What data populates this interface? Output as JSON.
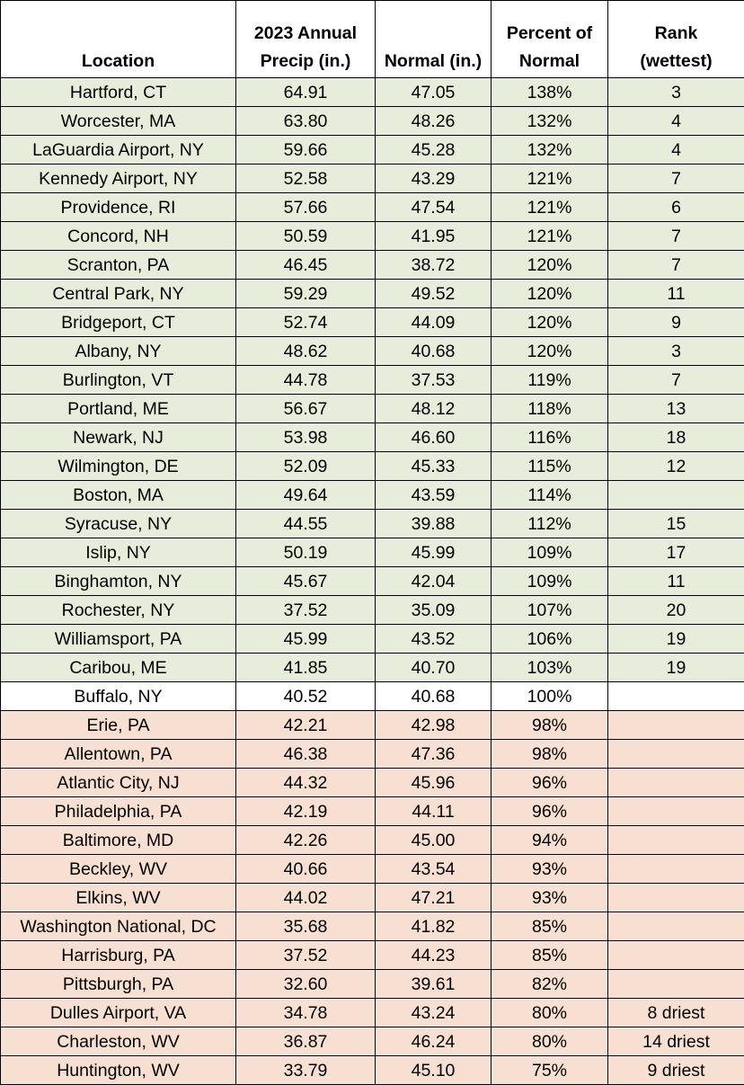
{
  "chart_data": {
    "type": "table",
    "columns": [
      "Location",
      "2023 Annual Precip (in.)",
      "Normal (in.)",
      "Percent of Normal",
      "Rank (wettest)"
    ],
    "header_lines": [
      [
        "Location"
      ],
      [
        "2023 Annual",
        "Precip (in.)"
      ],
      [
        "Normal (in.)"
      ],
      [
        "Percent of",
        "Normal"
      ],
      [
        "Rank",
        "(wettest)"
      ]
    ],
    "colors": {
      "above_normal": "#e6eedb",
      "normal": "#ffffff",
      "below_normal": "#f7e0d1"
    },
    "rows": [
      {
        "location": "Hartford, CT",
        "precip": "64.91",
        "normal": "47.05",
        "percent": "138%",
        "rank": "3",
        "group": "wet"
      },
      {
        "location": "Worcester, MA",
        "precip": "63.80",
        "normal": "48.26",
        "percent": "132%",
        "rank": "4",
        "group": "wet"
      },
      {
        "location": "LaGuardia Airport, NY",
        "precip": "59.66",
        "normal": "45.28",
        "percent": "132%",
        "rank": "4",
        "group": "wet"
      },
      {
        "location": "Kennedy Airport, NY",
        "precip": "52.58",
        "normal": "43.29",
        "percent": "121%",
        "rank": "7",
        "group": "wet"
      },
      {
        "location": "Providence, RI",
        "precip": "57.66",
        "normal": "47.54",
        "percent": "121%",
        "rank": "6",
        "group": "wet"
      },
      {
        "location": "Concord, NH",
        "precip": "50.59",
        "normal": "41.95",
        "percent": "121%",
        "rank": "7",
        "group": "wet"
      },
      {
        "location": "Scranton, PA",
        "precip": "46.45",
        "normal": "38.72",
        "percent": "120%",
        "rank": "7",
        "group": "wet"
      },
      {
        "location": "Central Park, NY",
        "precip": "59.29",
        "normal": "49.52",
        "percent": "120%",
        "rank": "11",
        "group": "wet"
      },
      {
        "location": "Bridgeport, CT",
        "precip": "52.74",
        "normal": "44.09",
        "percent": "120%",
        "rank": "9",
        "group": "wet"
      },
      {
        "location": "Albany, NY",
        "precip": "48.62",
        "normal": "40.68",
        "percent": "120%",
        "rank": "3",
        "group": "wet"
      },
      {
        "location": "Burlington, VT",
        "precip": "44.78",
        "normal": "37.53",
        "percent": "119%",
        "rank": "7",
        "group": "wet"
      },
      {
        "location": "Portland, ME",
        "precip": "56.67",
        "normal": "48.12",
        "percent": "118%",
        "rank": "13",
        "group": "wet"
      },
      {
        "location": "Newark, NJ",
        "precip": "53.98",
        "normal": "46.60",
        "percent": "116%",
        "rank": "18",
        "group": "wet"
      },
      {
        "location": "Wilmington, DE",
        "precip": "52.09",
        "normal": "45.33",
        "percent": "115%",
        "rank": "12",
        "group": "wet"
      },
      {
        "location": "Boston, MA",
        "precip": "49.64",
        "normal": "43.59",
        "percent": "114%",
        "rank": "",
        "group": "wet"
      },
      {
        "location": "Syracuse, NY",
        "precip": "44.55",
        "normal": "39.88",
        "percent": "112%",
        "rank": "15",
        "group": "wet"
      },
      {
        "location": "Islip, NY",
        "precip": "50.19",
        "normal": "45.99",
        "percent": "109%",
        "rank": "17",
        "group": "wet"
      },
      {
        "location": "Binghamton, NY",
        "precip": "45.67",
        "normal": "42.04",
        "percent": "109%",
        "rank": "11",
        "group": "wet"
      },
      {
        "location": "Rochester, NY",
        "precip": "37.52",
        "normal": "35.09",
        "percent": "107%",
        "rank": "20",
        "group": "wet"
      },
      {
        "location": "Williamsport, PA",
        "precip": "45.99",
        "normal": "43.52",
        "percent": "106%",
        "rank": "19",
        "group": "wet"
      },
      {
        "location": "Caribou, ME",
        "precip": "41.85",
        "normal": "40.70",
        "percent": "103%",
        "rank": "19",
        "group": "wet"
      },
      {
        "location": "Buffalo, NY",
        "precip": "40.52",
        "normal": "40.68",
        "percent": "100%",
        "rank": "",
        "group": "neutral"
      },
      {
        "location": "Erie, PA",
        "precip": "42.21",
        "normal": "42.98",
        "percent": "98%",
        "rank": "",
        "group": "dry"
      },
      {
        "location": "Allentown, PA",
        "precip": "46.38",
        "normal": "47.36",
        "percent": "98%",
        "rank": "",
        "group": "dry"
      },
      {
        "location": "Atlantic City, NJ",
        "precip": "44.32",
        "normal": "45.96",
        "percent": "96%",
        "rank": "",
        "group": "dry"
      },
      {
        "location": "Philadelphia, PA",
        "precip": "42.19",
        "normal": "44.11",
        "percent": "96%",
        "rank": "",
        "group": "dry"
      },
      {
        "location": "Baltimore, MD",
        "precip": "42.26",
        "normal": "45.00",
        "percent": "94%",
        "rank": "",
        "group": "dry"
      },
      {
        "location": "Beckley, WV",
        "precip": "40.66",
        "normal": "43.54",
        "percent": "93%",
        "rank": "",
        "group": "dry"
      },
      {
        "location": "Elkins, WV",
        "precip": "44.02",
        "normal": "47.21",
        "percent": "93%",
        "rank": "",
        "group": "dry"
      },
      {
        "location": "Washington National, DC",
        "precip": "35.68",
        "normal": "41.82",
        "percent": "85%",
        "rank": "",
        "group": "dry"
      },
      {
        "location": "Harrisburg, PA",
        "precip": "37.52",
        "normal": "44.23",
        "percent": "85%",
        "rank": "",
        "group": "dry"
      },
      {
        "location": "Pittsburgh, PA",
        "precip": "32.60",
        "normal": "39.61",
        "percent": "82%",
        "rank": "",
        "group": "dry"
      },
      {
        "location": "Dulles Airport, VA",
        "precip": "34.78",
        "normal": "43.24",
        "percent": "80%",
        "rank": "8 driest",
        "group": "dry"
      },
      {
        "location": "Charleston, WV",
        "precip": "36.87",
        "normal": "46.24",
        "percent": "80%",
        "rank": "14 driest",
        "group": "dry"
      },
      {
        "location": "Huntington, WV",
        "precip": "33.79",
        "normal": "45.10",
        "percent": "75%",
        "rank": "9 driest",
        "group": "dry"
      }
    ]
  }
}
